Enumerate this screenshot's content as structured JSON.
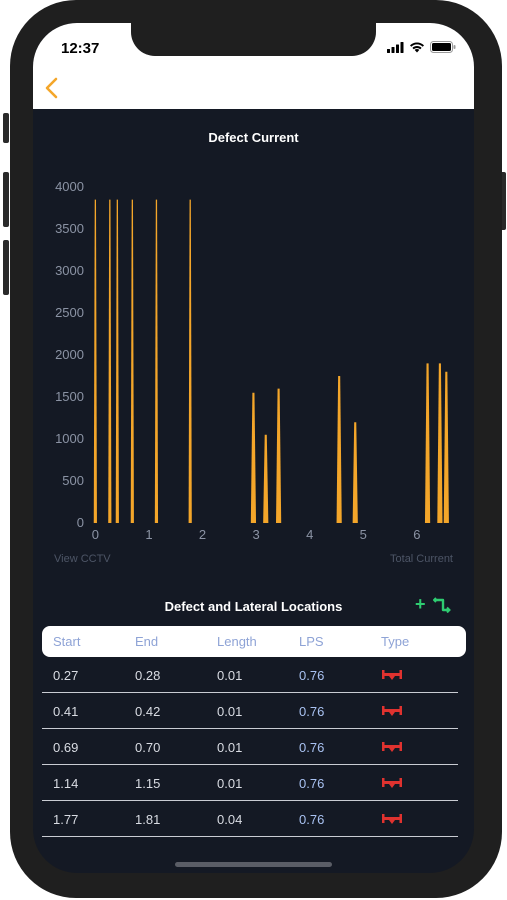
{
  "status_bar": {
    "time": "12:37"
  },
  "nav": {
    "back_icon": "chevron-left-icon",
    "accent_color": "#f4a62a"
  },
  "chart": {
    "title": "Defect Current",
    "footer_left": "View CCTV",
    "footer_right": "Total Current"
  },
  "chart_data": {
    "type": "bar",
    "title": "Defect Current",
    "xlabel": "",
    "ylabel": "",
    "xlim": [
      -0.1,
      6.6
    ],
    "ylim": [
      0,
      4000
    ],
    "x_ticks": [
      0,
      1,
      2,
      3,
      4,
      5,
      6
    ],
    "y_ticks": [
      0,
      500,
      1000,
      1500,
      2000,
      2500,
      3000,
      3500,
      4000
    ],
    "bar_color": "#f4a62a",
    "grid": false,
    "series": [
      {
        "values": [
          {
            "x": 0.0,
            "y": 3850
          },
          {
            "x": 0.27,
            "y": 3850
          },
          {
            "x": 0.41,
            "y": 3850
          },
          {
            "x": 0.69,
            "y": 3850
          },
          {
            "x": 1.14,
            "y": 3850
          },
          {
            "x": 1.77,
            "y": 3850
          },
          {
            "x": 2.95,
            "y": 1550
          },
          {
            "x": 3.18,
            "y": 1050
          },
          {
            "x": 3.42,
            "y": 1600
          },
          {
            "x": 4.55,
            "y": 1750
          },
          {
            "x": 4.85,
            "y": 1200
          },
          {
            "x": 6.2,
            "y": 1900
          },
          {
            "x": 6.43,
            "y": 1900
          },
          {
            "x": 6.55,
            "y": 1800
          }
        ]
      }
    ]
  },
  "locations": {
    "title": "Defect and Lateral Locations",
    "add_label": "+",
    "swap_icon": "swap-arrows-icon",
    "headers": [
      "Start",
      "End",
      "Length",
      "LPS",
      "Type"
    ],
    "rows": [
      {
        "start": "0.27",
        "end": "0.28",
        "length": "0.01",
        "lps": "0.76",
        "type_icon": "pipe-defect-icon"
      },
      {
        "start": "0.41",
        "end": "0.42",
        "length": "0.01",
        "lps": "0.76",
        "type_icon": "pipe-defect-icon"
      },
      {
        "start": "0.69",
        "end": "0.70",
        "length": "0.01",
        "lps": "0.76",
        "type_icon": "pipe-defect-icon"
      },
      {
        "start": "1.14",
        "end": "1.15",
        "length": "0.01",
        "lps": "0.76",
        "type_icon": "pipe-defect-icon"
      },
      {
        "start": "1.77",
        "end": "1.81",
        "length": "0.04",
        "lps": "0.76",
        "type_icon": "pipe-defect-icon"
      }
    ]
  }
}
